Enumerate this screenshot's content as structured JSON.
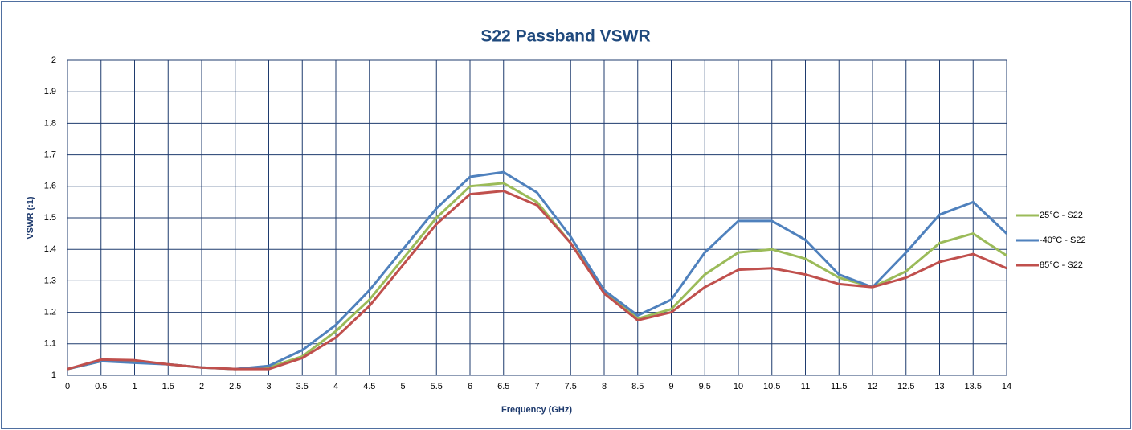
{
  "chart_data": {
    "type": "line",
    "title": "S22 Passband VSWR",
    "x_label": "Frequency (GHz)",
    "y_label": "VSWR (:1)",
    "x": [
      0,
      0.5,
      1,
      1.5,
      2,
      2.5,
      3,
      3.5,
      4,
      4.5,
      5,
      5.5,
      6,
      6.5,
      7,
      7.5,
      8,
      8.5,
      9,
      9.5,
      10,
      10.5,
      11,
      11.5,
      12,
      12.5,
      13,
      13.5,
      14
    ],
    "series": [
      {
        "name": "25°C - S22",
        "color": "#9bbb59",
        "values": [
          1.02,
          1.045,
          1.045,
          1.035,
          1.025,
          1.02,
          1.025,
          1.06,
          1.14,
          1.24,
          1.37,
          1.5,
          1.6,
          1.61,
          1.55,
          1.42,
          1.27,
          1.18,
          1.21,
          1.32,
          1.39,
          1.4,
          1.37,
          1.31,
          1.28,
          1.33,
          1.42,
          1.45,
          1.38
        ]
      },
      {
        "name": "-40°C - S22",
        "color": "#4f81bd",
        "values": [
          1.02,
          1.045,
          1.04,
          1.035,
          1.025,
          1.02,
          1.03,
          1.08,
          1.16,
          1.27,
          1.4,
          1.53,
          1.63,
          1.645,
          1.58,
          1.44,
          1.27,
          1.19,
          1.24,
          1.39,
          1.49,
          1.49,
          1.43,
          1.32,
          1.28,
          1.39,
          1.51,
          1.55,
          1.45
        ]
      },
      {
        "name": "85°C - S22",
        "color": "#c0504d",
        "values": [
          1.02,
          1.05,
          1.048,
          1.035,
          1.025,
          1.02,
          1.02,
          1.055,
          1.12,
          1.22,
          1.35,
          1.48,
          1.575,
          1.585,
          1.54,
          1.42,
          1.26,
          1.175,
          1.2,
          1.28,
          1.335,
          1.34,
          1.32,
          1.29,
          1.28,
          1.31,
          1.36,
          1.385,
          1.34
        ]
      }
    ],
    "xlim": [
      0,
      14
    ],
    "xticks": [
      0,
      0.5,
      1,
      1.5,
      2,
      2.5,
      3,
      3.5,
      4,
      4.5,
      5,
      5.5,
      6,
      6.5,
      7,
      7.5,
      8,
      8.5,
      9,
      9.5,
      10,
      10.5,
      11,
      11.5,
      12,
      12.5,
      13,
      13.5,
      14
    ],
    "ylim": [
      1,
      2
    ],
    "yticks": [
      1,
      1.1,
      1.2,
      1.3,
      1.4,
      1.5,
      1.6,
      1.7,
      1.8,
      1.9,
      2
    ],
    "grid": true,
    "legend": "right"
  }
}
